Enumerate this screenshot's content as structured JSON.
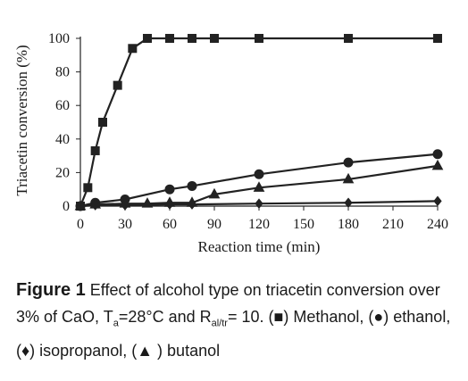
{
  "chart_data": {
    "type": "line",
    "xlabel": "Reaction time (min)",
    "ylabel": "Triacetin conversion (%)",
    "xlim": [
      0,
      240
    ],
    "ylim": [
      0,
      100
    ],
    "xticks": [
      0,
      30,
      60,
      90,
      120,
      150,
      180,
      210,
      240
    ],
    "yticks": [
      0,
      20,
      40,
      60,
      80,
      100
    ],
    "grid": false,
    "legend": "none",
    "series": [
      {
        "marker": "square",
        "color": "#222222",
        "x": [
          0,
          5,
          10,
          15,
          25,
          35,
          45,
          60,
          75,
          90,
          120,
          180,
          240
        ],
        "y": [
          0,
          11,
          33,
          50,
          72,
          94,
          100,
          100,
          100,
          100,
          100,
          100,
          100
        ]
      },
      {
        "marker": "circle",
        "color": "#222222",
        "x": [
          0,
          10,
          30,
          60,
          75,
          120,
          180,
          240
        ],
        "y": [
          0,
          2,
          4,
          10,
          12,
          19,
          26,
          31
        ]
      },
      {
        "marker": "diamond",
        "color": "#222222",
        "x": [
          0,
          10,
          30,
          60,
          75,
          120,
          180,
          240
        ],
        "y": [
          0,
          0.5,
          0.5,
          1,
          1,
          1.5,
          2,
          3
        ]
      },
      {
        "marker": "triangle",
        "color": "#222222",
        "x": [
          0,
          10,
          30,
          45,
          60,
          75,
          90,
          120,
          180,
          240
        ],
        "y": [
          0,
          1,
          1.5,
          1.5,
          2,
          2,
          7,
          11,
          16,
          24
        ]
      }
    ]
  },
  "caption": {
    "label": "Figure 1",
    "text1": " Effect of alcohol type on triacetin conversion over 3% of CaO, T",
    "sub1": "a",
    "text2": "=28°C and R",
    "sub2": "al/tr",
    "text3": "= 10. (■) Methanol, (●) ethanol, (♦) isopropanol, (▲ ) butanol"
  }
}
